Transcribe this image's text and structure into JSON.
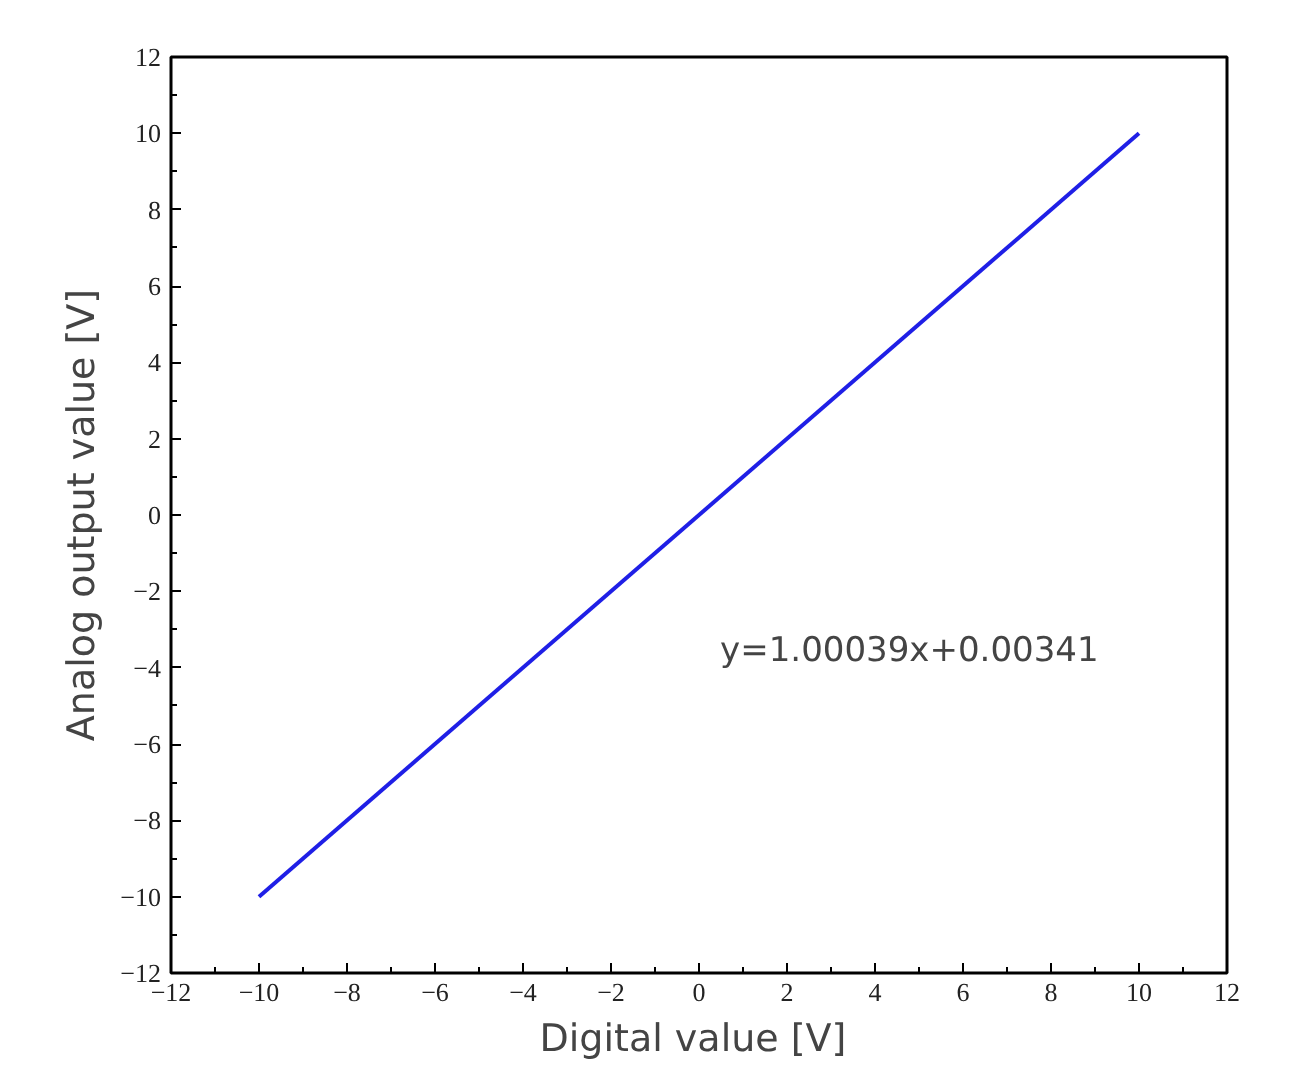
{
  "chart_data": {
    "type": "line",
    "xlabel": "Digital value  [V]",
    "ylabel": "Analog output value [V]",
    "x": [
      -10,
      10
    ],
    "series": [
      {
        "color": "#1f1fe6",
        "values": [
          -10,
          10
        ]
      }
    ],
    "xlim": [
      -12,
      12
    ],
    "ylim": [
      -12,
      12
    ],
    "xticks": [
      -12,
      -10,
      -8,
      -6,
      -4,
      -2,
      0,
      2,
      4,
      6,
      8,
      10,
      12
    ],
    "yticks": [
      -12,
      -10,
      -8,
      -6,
      -4,
      -2,
      0,
      2,
      4,
      6,
      8,
      10,
      12
    ],
    "grid": false,
    "marker": "none",
    "line_style": "solid",
    "annotations": [
      "y=1.00039x+0.00341"
    ]
  }
}
